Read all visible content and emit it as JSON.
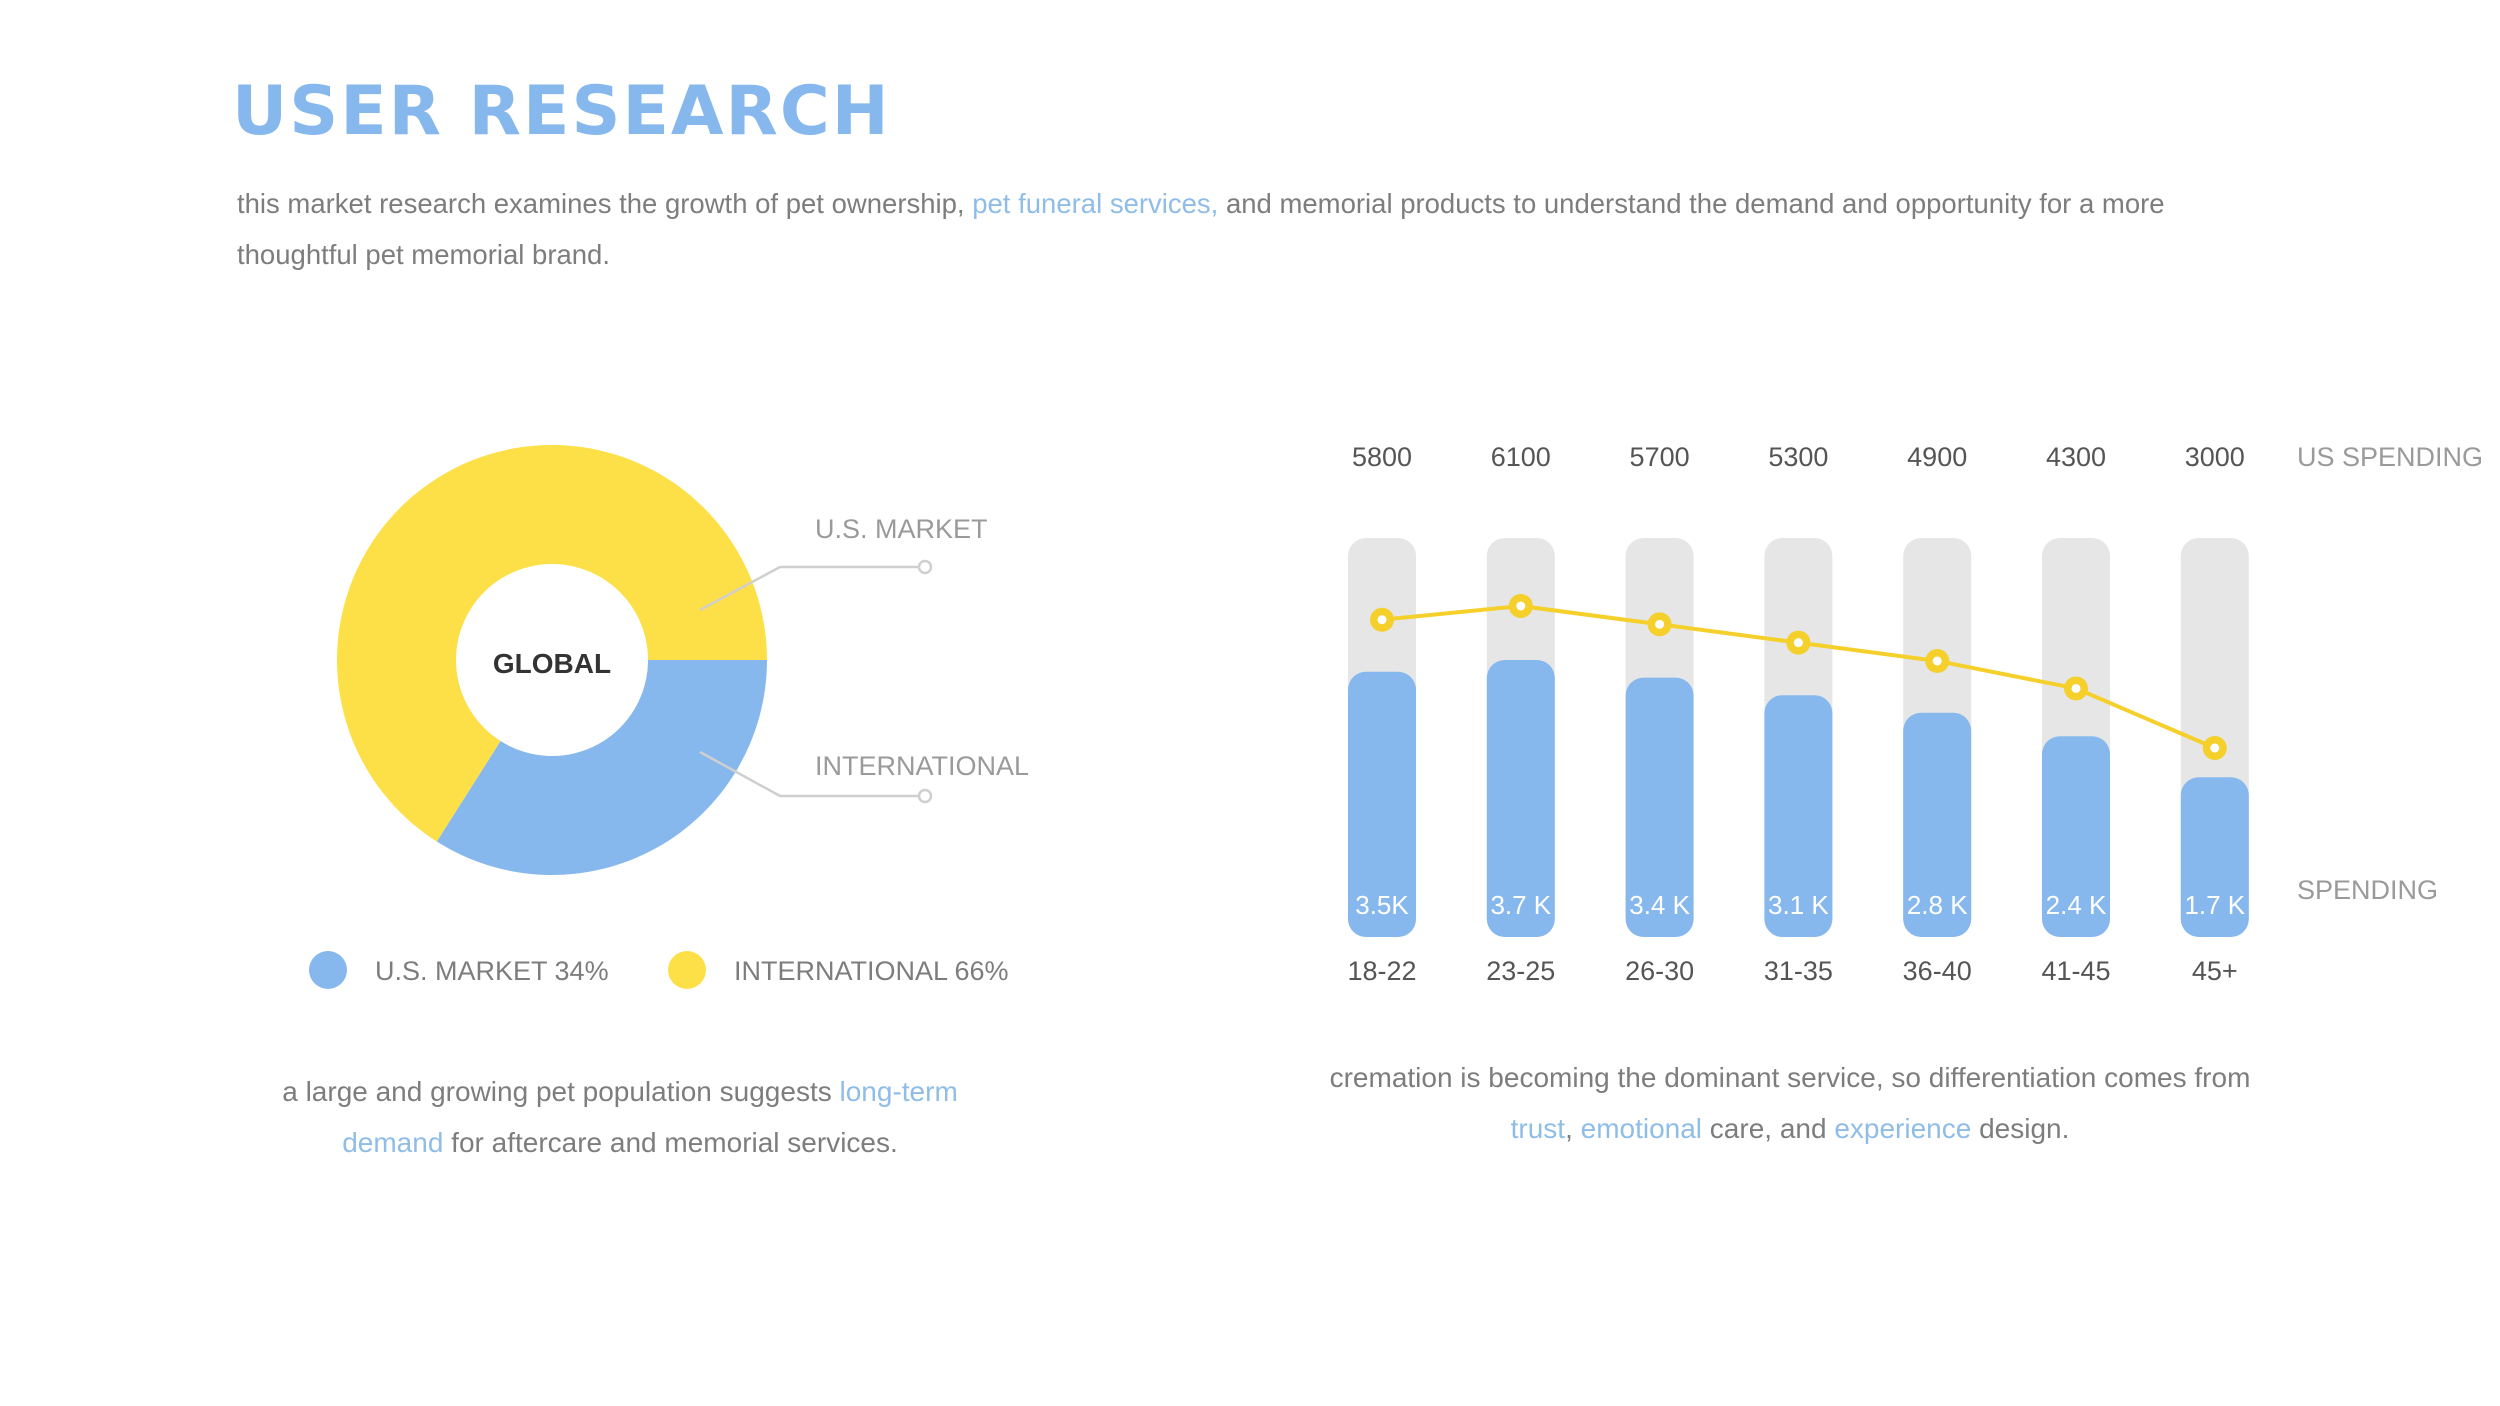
{
  "header": {
    "title": "USER RESEARCH"
  },
  "intro": {
    "before": "this market research examines the growth of pet ownership, ",
    "highlight": "pet funeral services,",
    "after": " and memorial products to understand the demand and opportunity for a more thoughtful pet memorial brand."
  },
  "colors": {
    "blue": "#86b8ee",
    "yellow": "#fde047",
    "track": "#e6e6e6",
    "text": "#7d7d7d",
    "highlight": "#8fbde8"
  },
  "chart_data": [
    {
      "type": "pie",
      "variant": "donut",
      "center_label": "GLOBAL",
      "slices": [
        {
          "label": "U.S. MARKET",
          "legend": "U.S. MARKET 34%",
          "value": 34,
          "color": "#86b8ee"
        },
        {
          "label": "INTERNATIONAL",
          "legend": "INTERNATIONAL 66%",
          "value": 66,
          "color": "#fde047"
        }
      ],
      "legend_position": "bottom"
    },
    {
      "type": "bar",
      "categories": [
        "18-22",
        "23-25",
        "26-30",
        "31-35",
        "36-40",
        "41-45",
        "45+"
      ],
      "series": [
        {
          "name": "SPENDING",
          "type": "bar",
          "values": [
            3.5,
            3.7,
            3.4,
            3.1,
            2.8,
            2.4,
            1.7
          ],
          "labels": [
            "3.5K",
            "3.7 K",
            "3.4 K",
            "3.1 K",
            "2.8 K",
            "2.4 K",
            "1.7 K"
          ],
          "color": "#86b8ee"
        },
        {
          "name": "US SPENDING",
          "type": "line",
          "values": [
            5800,
            6100,
            5700,
            5300,
            4900,
            4300,
            3000
          ],
          "color": "#fde047"
        }
      ]
    }
  ],
  "captions": {
    "left": {
      "before": "a large and growing pet population suggests ",
      "highlight": "long-term demand",
      "after": " for aftercare and memorial services."
    },
    "right": {
      "before": "cremation is becoming the dominant service, so differentiation comes from ",
      "h1": "trust",
      "sep1": ", ",
      "h2": "emotional",
      "mid": " care, and ",
      "h3": "experience",
      "after": " design."
    }
  }
}
